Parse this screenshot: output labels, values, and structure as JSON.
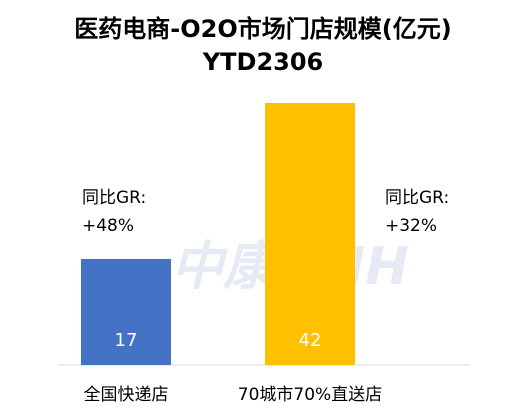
{
  "chart_data": {
    "type": "bar",
    "title": [
      "医药电商-O2O市场门店规模(亿元)",
      "YTD2306"
    ],
    "categories": [
      "全国快递店",
      "70城市70%直送店"
    ],
    "values": [
      17,
      42
    ],
    "colors": [
      "#4472c4",
      "#ffc000"
    ],
    "annotations": [
      [
        "同比GR:",
        "+48%"
      ],
      [
        "同比GR:",
        "+32%"
      ]
    ],
    "watermark": "中康CMH"
  }
}
